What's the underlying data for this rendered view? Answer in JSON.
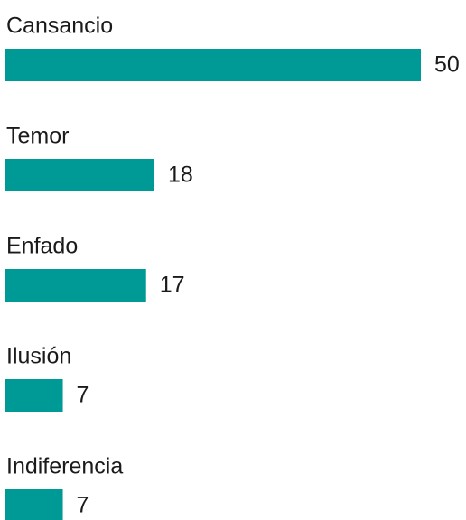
{
  "chart_data": {
    "type": "bar",
    "orientation": "horizontal",
    "categories": [
      "Cansancio",
      "Temor",
      "Enfado",
      "Ilusión",
      "Indiferencia"
    ],
    "values": [
      50,
      18,
      17,
      7,
      7
    ],
    "color": "#009a96"
  }
}
